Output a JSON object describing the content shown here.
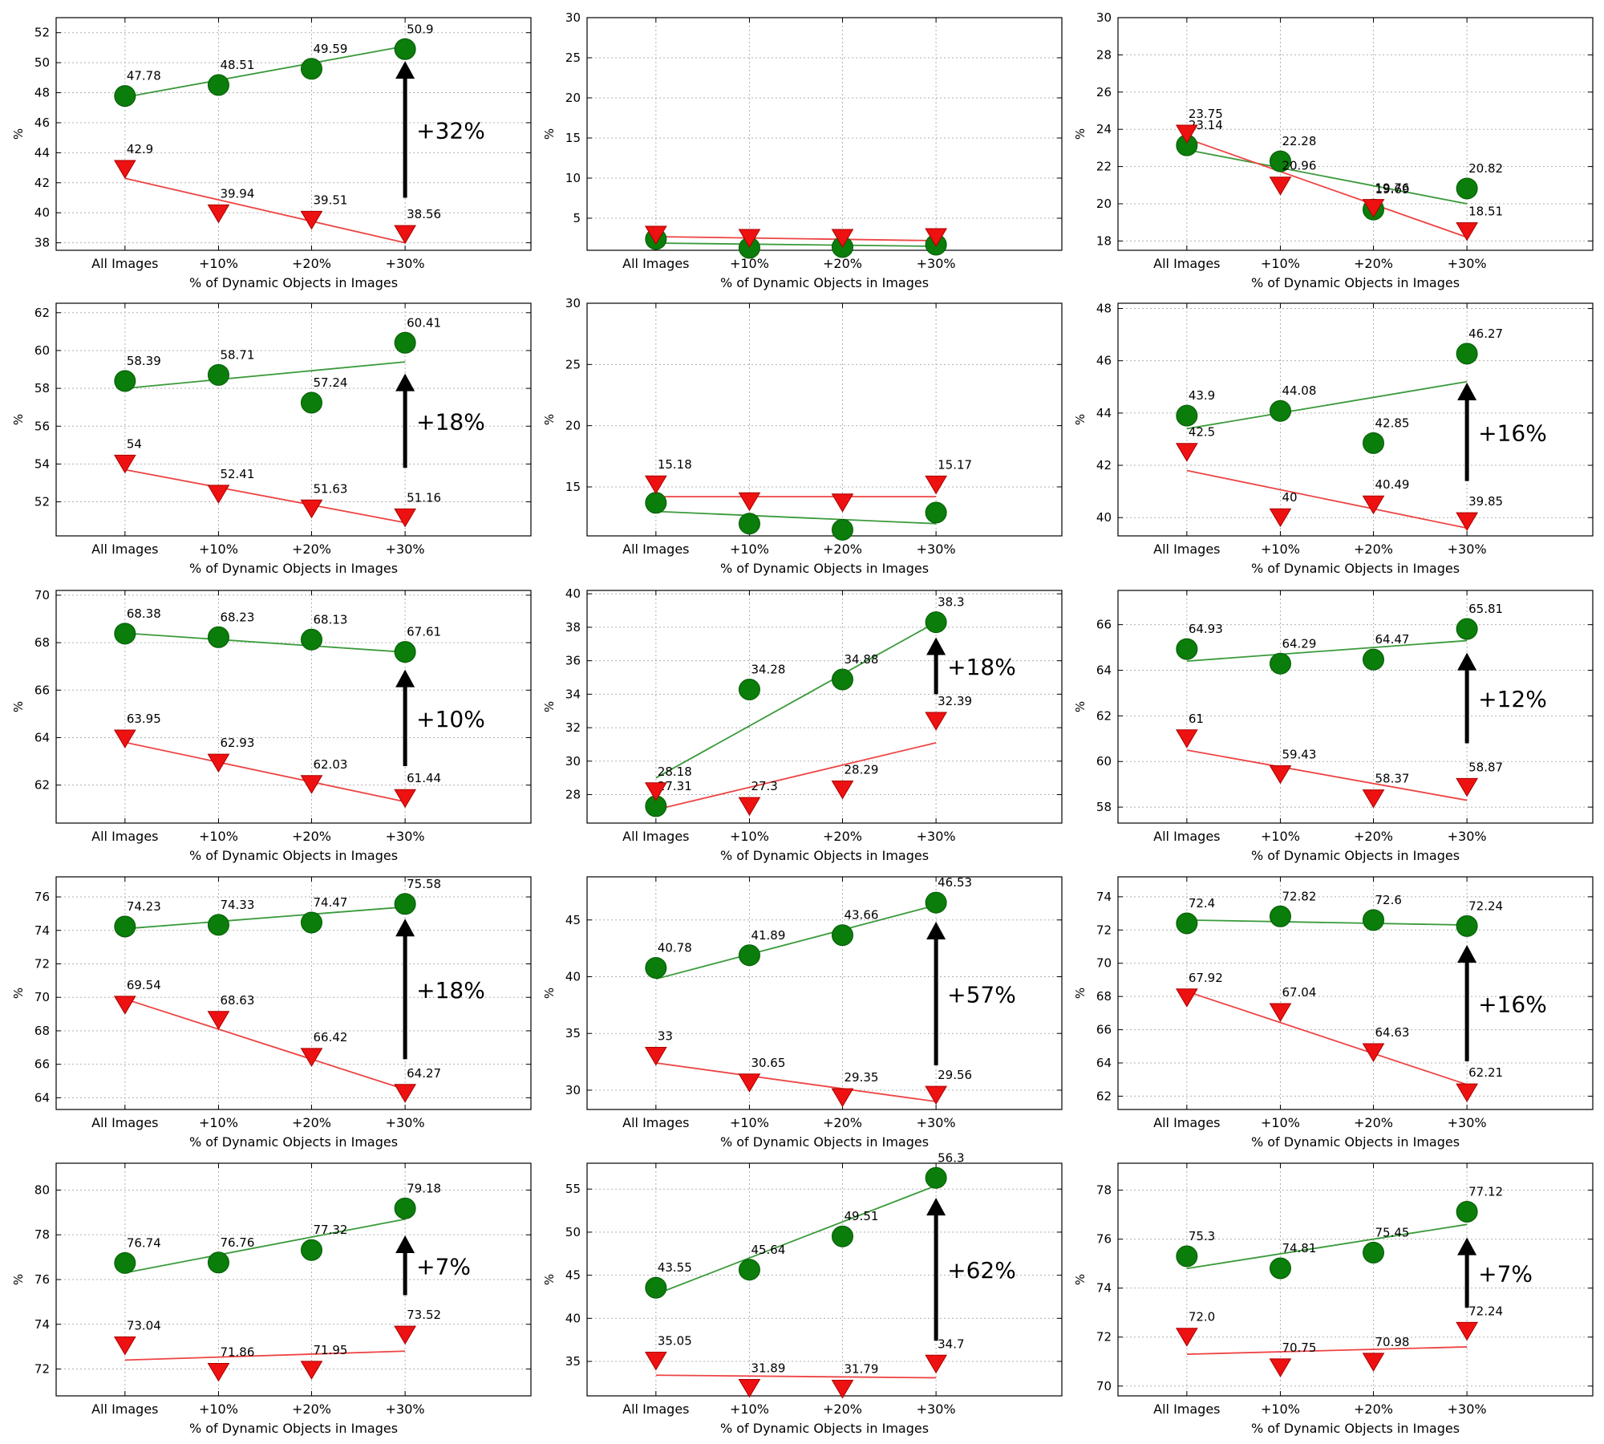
{
  "common": {
    "ylabel": "%",
    "xlabel": "% of Dynamic Objects in Images",
    "categories": [
      "All Images",
      "+10%",
      "+20%",
      "+30%"
    ],
    "colors": {
      "circle_fill": "#0a7d0a",
      "circle_line": "#3a9a3a",
      "triangle_fill": "#ee1111",
      "triangle_line": "#ee4444",
      "arrow": "#000000",
      "grid": "#b0b0b0"
    }
  },
  "chart_data": [
    {
      "type": "scatter",
      "ylim": [
        37.5,
        53
      ],
      "yticks": [
        38,
        40,
        42,
        44,
        46,
        48,
        50,
        52
      ],
      "series": [
        {
          "marker": "circle",
          "values": [
            47.78,
            48.51,
            49.59,
            50.9
          ],
          "labels": [
            "47.78",
            "48.51",
            "49.59",
            "50.9"
          ],
          "fit": [
            47.7,
            51.1
          ]
        },
        {
          "marker": "triangle",
          "values": [
            42.9,
            39.94,
            39.51,
            38.56
          ],
          "labels": [
            "42.9",
            "39.94",
            "39.51",
            "38.56"
          ],
          "fit": [
            42.3,
            38.0
          ]
        }
      ],
      "annotation": {
        "text": "+32%",
        "from": 41.0,
        "to": 50.0
      }
    },
    {
      "type": "scatter",
      "ylim": [
        1,
        30
      ],
      "yticks": [
        5,
        10,
        15,
        20,
        25,
        30
      ],
      "series": [
        {
          "marker": "circle",
          "values": [
            2.4,
            1.3,
            1.4,
            1.7
          ],
          "labels": [],
          "fit": [
            1.9,
            1.5
          ]
        },
        {
          "marker": "triangle",
          "values": [
            2.9,
            2.5,
            2.5,
            2.6
          ],
          "labels": [],
          "fit": [
            2.7,
            2.2
          ]
        }
      ],
      "annotation": null
    },
    {
      "type": "scatter",
      "ylim": [
        17.5,
        30
      ],
      "yticks": [
        18,
        20,
        22,
        24,
        26,
        28,
        30
      ],
      "series": [
        {
          "marker": "circle",
          "values": [
            23.14,
            22.28,
            19.69,
            20.82
          ],
          "labels": [
            "23.14",
            "22.28",
            "19.69",
            "20.82"
          ],
          "fit": [
            22.9,
            20.0
          ]
        },
        {
          "marker": "triangle",
          "values": [
            23.75,
            20.96,
            19.76,
            18.51
          ],
          "labels": [
            "23.75",
            "20.96",
            "19.76",
            "18.51"
          ],
          "fit": [
            23.5,
            18.2
          ]
        }
      ],
      "annotation": null
    },
    {
      "type": "scatter",
      "ylim": [
        50.2,
        62.5
      ],
      "yticks": [
        52,
        54,
        56,
        58,
        60,
        62
      ],
      "series": [
        {
          "marker": "circle",
          "values": [
            58.39,
            58.71,
            57.24,
            60.41
          ],
          "labels": [
            "58.39",
            "58.71",
            "57.24",
            "60.41"
          ],
          "fit": [
            58.0,
            59.4
          ]
        },
        {
          "marker": "triangle",
          "values": [
            54,
            52.41,
            51.63,
            51.16
          ],
          "labels": [
            "54",
            "52.41",
            "51.63",
            "51.16"
          ],
          "fit": [
            53.7,
            50.9
          ]
        }
      ],
      "annotation": {
        "text": "+18%",
        "from": 53.8,
        "to": 58.7
      }
    },
    {
      "type": "scatter",
      "ylim": [
        11,
        30
      ],
      "yticks": [
        15,
        20,
        25,
        30
      ],
      "series": [
        {
          "marker": "circle",
          "values": [
            13.7,
            12.0,
            11.5,
            12.9
          ],
          "labels": [],
          "fit": [
            13.0,
            12.0
          ]
        },
        {
          "marker": "triangle",
          "values": [
            15.18,
            13.8,
            13.7,
            15.17
          ],
          "labels": [
            "15.18",
            "15.17"
          ],
          "label_idx": [
            0,
            3
          ],
          "fit": [
            14.2,
            14.2
          ]
        }
      ],
      "annotation": null
    },
    {
      "type": "scatter",
      "ylim": [
        39.3,
        48.2
      ],
      "yticks": [
        40,
        42,
        44,
        46,
        48
      ],
      "series": [
        {
          "marker": "circle",
          "values": [
            43.9,
            44.08,
            42.85,
            46.27
          ],
          "labels": [
            "43.9",
            "44.08",
            "42.85",
            "46.27"
          ],
          "fit": [
            43.4,
            45.2
          ]
        },
        {
          "marker": "triangle",
          "values": [
            42.5,
            40,
            40.49,
            39.85
          ],
          "labels": [
            "42.5",
            "40",
            "40.49",
            "39.85"
          ],
          "fit": [
            41.8,
            39.6
          ]
        }
      ],
      "annotation": {
        "text": "+16%",
        "from": 41.4,
        "to": 45.1
      }
    },
    {
      "type": "scatter",
      "ylim": [
        60.4,
        70.2
      ],
      "yticks": [
        62,
        64,
        66,
        68,
        70
      ],
      "series": [
        {
          "marker": "circle",
          "values": [
            68.38,
            68.23,
            68.13,
            67.61
          ],
          "labels": [
            "68.38",
            "68.23",
            "68.13",
            "67.61"
          ],
          "fit": [
            68.4,
            67.6
          ]
        },
        {
          "marker": "triangle",
          "values": [
            63.95,
            62.93,
            62.03,
            61.44
          ],
          "labels": [
            "63.95",
            "62.93",
            "62.03",
            "61.44"
          ],
          "fit": [
            63.8,
            61.3
          ]
        }
      ],
      "annotation": {
        "text": "+10%",
        "from": 62.8,
        "to": 66.8
      }
    },
    {
      "type": "scatter",
      "ylim": [
        26.3,
        40.2
      ],
      "yticks": [
        28,
        30,
        32,
        34,
        36,
        38,
        40
      ],
      "series": [
        {
          "marker": "circle",
          "values": [
            27.31,
            34.28,
            34.88,
            38.3
          ],
          "labels": [
            "27.31",
            "34.28",
            "34.88",
            "38.3"
          ],
          "fit": [
            29.0,
            38.3
          ]
        },
        {
          "marker": "triangle",
          "values": [
            28.18,
            27.3,
            28.29,
            32.39
          ],
          "labels": [
            "28.18",
            "27.3",
            "28.29",
            "32.39"
          ],
          "fit": [
            27.1,
            31.1
          ]
        }
      ],
      "annotation": {
        "text": "+18%",
        "from": 34.0,
        "to": 37.3
      }
    },
    {
      "type": "scatter",
      "ylim": [
        57.3,
        67.5
      ],
      "yticks": [
        58,
        60,
        62,
        64,
        66
      ],
      "series": [
        {
          "marker": "circle",
          "values": [
            64.93,
            64.29,
            64.47,
            65.81
          ],
          "labels": [
            "64.93",
            "64.29",
            "64.47",
            "65.81"
          ],
          "fit": [
            64.4,
            65.3
          ]
        },
        {
          "marker": "triangle",
          "values": [
            61,
            59.43,
            58.37,
            58.87
          ],
          "labels": [
            "61",
            "59.43",
            "58.37",
            "58.87"
          ],
          "fit": [
            60.5,
            58.3
          ]
        }
      ],
      "annotation": {
        "text": "+12%",
        "from": 60.8,
        "to": 64.7
      }
    },
    {
      "type": "scatter",
      "ylim": [
        63.3,
        77.2
      ],
      "yticks": [
        64,
        66,
        68,
        70,
        72,
        74,
        76
      ],
      "series": [
        {
          "marker": "circle",
          "values": [
            74.23,
            74.33,
            74.47,
            75.58
          ],
          "labels": [
            "74.23",
            "74.33",
            "74.47",
            "75.58"
          ],
          "fit": [
            74.1,
            75.4
          ]
        },
        {
          "marker": "triangle",
          "values": [
            69.54,
            68.63,
            66.42,
            64.27
          ],
          "labels": [
            "69.54",
            "68.63",
            "66.42",
            "64.27"
          ],
          "fit": [
            69.9,
            64.5
          ]
        }
      ],
      "annotation": {
        "text": "+18%",
        "from": 66.3,
        "to": 74.6
      }
    },
    {
      "type": "scatter",
      "ylim": [
        28.3,
        48.8
      ],
      "yticks": [
        30,
        35,
        40,
        45
      ],
      "series": [
        {
          "marker": "circle",
          "values": [
            40.78,
            41.89,
            43.66,
            46.53
          ],
          "labels": [
            "40.78",
            "41.89",
            "43.66",
            "46.53"
          ],
          "fit": [
            39.8,
            46.3
          ]
        },
        {
          "marker": "triangle",
          "values": [
            33,
            30.65,
            29.35,
            29.56
          ],
          "labels": [
            "33",
            "30.65",
            "29.35",
            "29.56"
          ],
          "fit": [
            32.4,
            29.0
          ]
        }
      ],
      "annotation": {
        "text": "+57%",
        "from": 32.2,
        "to": 44.7
      }
    },
    {
      "type": "scatter",
      "ylim": [
        61.2,
        75.2
      ],
      "yticks": [
        62,
        64,
        66,
        68,
        70,
        72,
        74
      ],
      "series": [
        {
          "marker": "circle",
          "values": [
            72.4,
            72.82,
            72.6,
            72.24
          ],
          "labels": [
            "72.4",
            "72.82",
            "72.6",
            "72.24"
          ],
          "fit": [
            72.6,
            72.3
          ]
        },
        {
          "marker": "triangle",
          "values": [
            67.92,
            67.04,
            64.63,
            62.21
          ],
          "labels": [
            "67.92",
            "67.04",
            "64.63",
            "62.21"
          ],
          "fit": [
            68.3,
            62.7
          ]
        }
      ],
      "annotation": {
        "text": "+16%",
        "from": 64.1,
        "to": 71.0
      }
    },
    {
      "type": "scatter",
      "ylim": [
        70.8,
        81.2
      ],
      "yticks": [
        72,
        74,
        76,
        78,
        80
      ],
      "series": [
        {
          "marker": "circle",
          "values": [
            76.74,
            76.76,
            77.32,
            79.18
          ],
          "labels": [
            "76.74",
            "76.76",
            "77.32",
            "79.18"
          ],
          "fit": [
            76.3,
            78.7
          ]
        },
        {
          "marker": "triangle",
          "values": [
            73.04,
            71.86,
            71.95,
            73.52
          ],
          "labels": [
            "73.04",
            "71.86",
            "71.95",
            "73.52"
          ],
          "fit": [
            72.4,
            72.8
          ]
        }
      ],
      "annotation": {
        "text": "+7%",
        "from": 75.3,
        "to": 77.9
      }
    },
    {
      "type": "scatter",
      "ylim": [
        31,
        58
      ],
      "yticks": [
        35,
        40,
        45,
        50,
        55
      ],
      "series": [
        {
          "marker": "circle",
          "values": [
            43.55,
            45.64,
            49.51,
            56.3
          ],
          "labels": [
            "43.55",
            "45.64",
            "49.51",
            "56.3"
          ],
          "fit": [
            42.8,
            55.4
          ]
        },
        {
          "marker": "triangle",
          "values": [
            35.05,
            31.89,
            31.79,
            34.7
          ],
          "labels": [
            "35.05",
            "31.89",
            "31.79",
            "34.7"
          ],
          "fit": [
            33.4,
            33.1
          ]
        }
      ],
      "annotation": {
        "text": "+62%",
        "from": 37.4,
        "to": 53.8
      }
    },
    {
      "type": "scatter",
      "ylim": [
        69.6,
        79.1
      ],
      "yticks": [
        70,
        72,
        74,
        76,
        78
      ],
      "series": [
        {
          "marker": "circle",
          "values": [
            75.3,
            74.81,
            75.45,
            77.12
          ],
          "labels": [
            "75.3",
            "74.81",
            "75.45",
            "77.12"
          ],
          "fit": [
            74.8,
            76.6
          ]
        },
        {
          "marker": "triangle",
          "values": [
            72.0,
            70.75,
            70.98,
            72.24
          ],
          "labels": [
            "72.0",
            "70.75",
            "70.98",
            "72.24"
          ],
          "fit": [
            71.3,
            71.6
          ]
        }
      ],
      "annotation": {
        "text": "+7%",
        "from": 73.2,
        "to": 76.0
      }
    }
  ]
}
